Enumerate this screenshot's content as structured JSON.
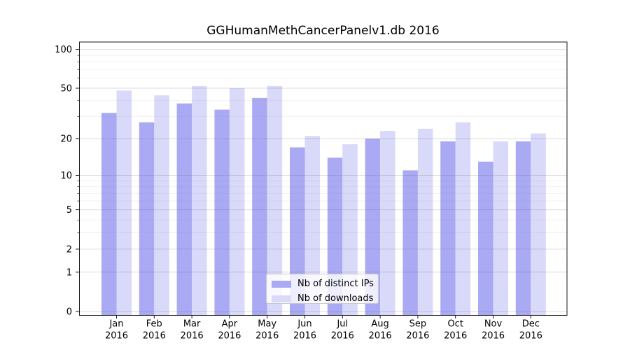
{
  "chart_data": {
    "type": "bar",
    "title": "GGHumanMethCancerPanelv1.db 2016",
    "y_scale": "log10(1+y)",
    "categories": [
      "Jan",
      "Feb",
      "Mar",
      "Apr",
      "May",
      "Jun",
      "Jul",
      "Aug",
      "Sep",
      "Oct",
      "Nov",
      "Dec"
    ],
    "x_tick_year": "2016",
    "series": [
      {
        "name": "Nb of distinct IPs",
        "color": "#a9a9f4",
        "values": [
          32,
          27,
          38,
          34,
          42,
          17,
          14,
          20,
          11,
          19,
          13,
          19
        ]
      },
      {
        "name": "Nb of downloads",
        "color": "#d9d9f9",
        "values": [
          48,
          44,
          52,
          50,
          52,
          21,
          18,
          23,
          24,
          27,
          19,
          22
        ]
      }
    ],
    "y_axis": {
      "major_ticks": [
        100,
        50,
        20,
        10,
        5,
        2,
        1,
        0
      ],
      "minor_ticks": [
        90,
        80,
        70,
        60,
        40,
        30,
        9,
        8,
        7,
        6,
        4,
        3
      ],
      "top_value": 114
    },
    "legend": {
      "position": "lower center"
    },
    "grid": true,
    "colors": {
      "spine": "#1a1a1a",
      "major_grid": "rgba(105,105,105,0.22)",
      "minor_grid": "rgba(150,150,150,0.13)",
      "text": "#000000"
    }
  }
}
